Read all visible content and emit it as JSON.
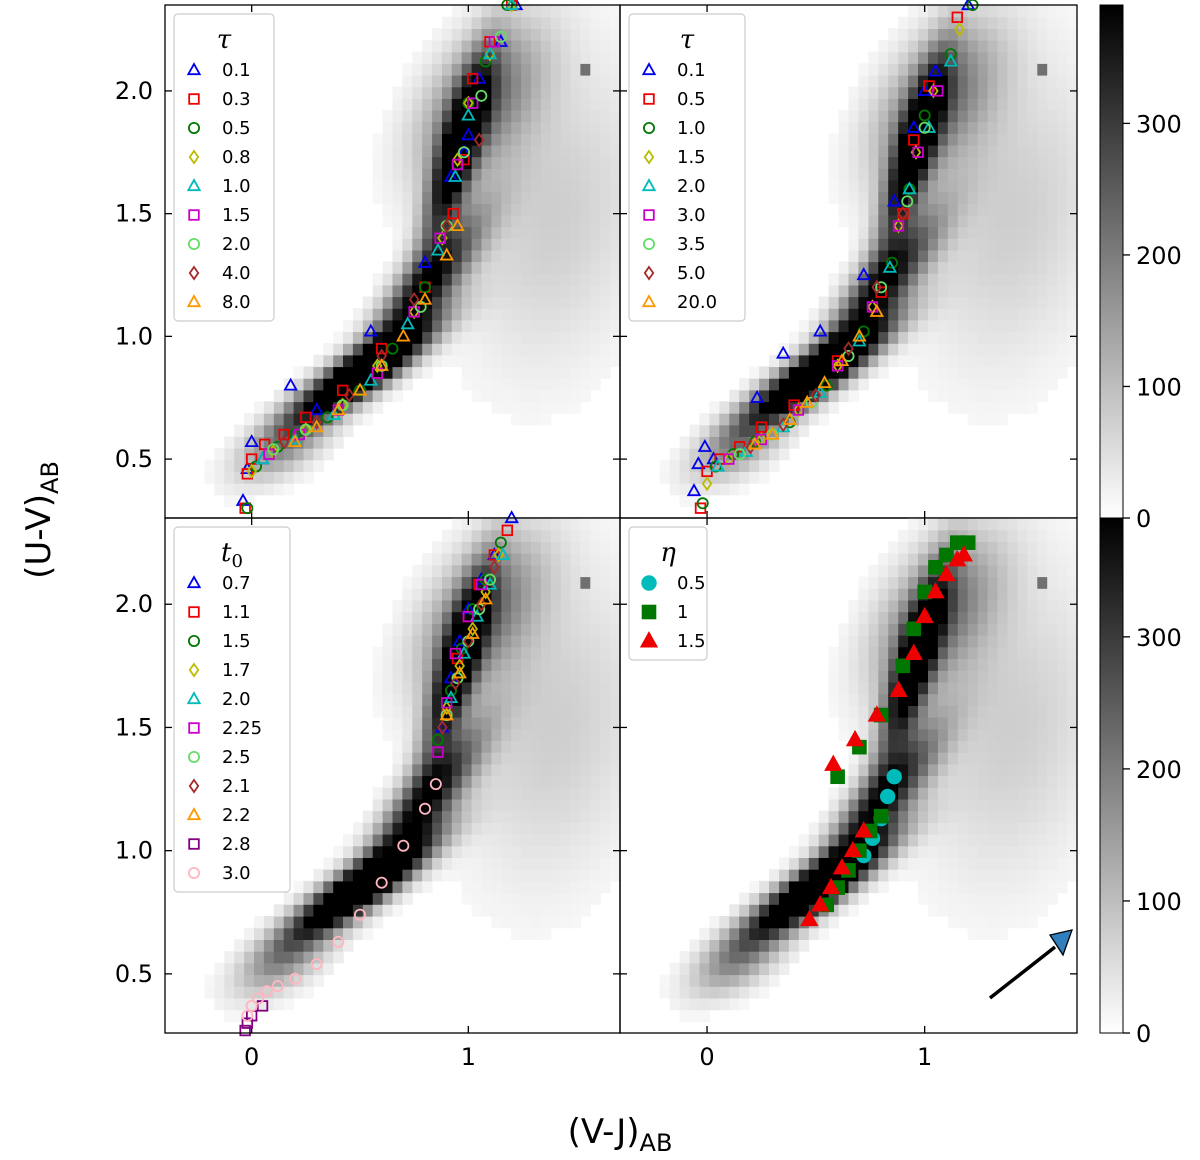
{
  "chart_data": {
    "type": "scatter",
    "figure": {
      "xlabel": "(V-J)",
      "xlabel_sub": "AB",
      "ylabel": "(U-V)",
      "ylabel_sub": "AB",
      "xlim": [
        -0.4,
        1.7
      ],
      "ylim": [
        0.26,
        2.35
      ],
      "xticks": [
        0,
        1
      ],
      "yticks": [
        0.5,
        1.0,
        1.5,
        2.0
      ],
      "ytick_labels": [
        "0.5",
        "1.0",
        "1.5",
        "2.0"
      ],
      "xtick_labels": [
        "0",
        "1"
      ]
    },
    "colorbars": [
      {
        "range": [
          0,
          390
        ],
        "ticks": [
          0,
          100,
          200,
          300
        ],
        "tick_labels": [
          "0",
          "100",
          "200",
          "300"
        ]
      },
      {
        "range": [
          0,
          390
        ],
        "ticks": [
          0,
          100,
          200,
          300
        ],
        "tick_labels": [
          "0",
          "100",
          "200",
          "300"
        ]
      }
    ],
    "density_background": {
      "description": "2D histogram of galaxy counts",
      "blobs": [
        {
          "x": 0.5,
          "y": 0.85,
          "sx": 0.22,
          "sy": 0.14,
          "rho": 0.88,
          "w": 1.0
        },
        {
          "x": 0.95,
          "y": 1.75,
          "sx": 0.1,
          "sy": 0.25,
          "rho": 0.8,
          "w": 0.7
        },
        {
          "x": 0.8,
          "y": 1.2,
          "sx": 0.18,
          "sy": 0.2,
          "rho": 0.85,
          "w": 0.6
        },
        {
          "x": 1.05,
          "y": 1.95,
          "sx": 0.2,
          "sy": 0.22,
          "rho": 0.5,
          "w": 0.35
        },
        {
          "x": 1.4,
          "y": 1.5,
          "sx": 0.3,
          "sy": 0.45,
          "rho": 0.2,
          "w": 0.12
        },
        {
          "x": 0.15,
          "y": 0.55,
          "sx": 0.15,
          "sy": 0.1,
          "rho": 0.6,
          "w": 0.25
        }
      ],
      "hot_pixel": {
        "x": 1.53,
        "y": 2.08
      }
    },
    "panels": [
      {
        "id": "top-left",
        "legend_title": "τ",
        "series": [
          {
            "name": "0.1",
            "marker": "triangle",
            "color": "#0000ee",
            "x": [
              -0.04,
              -0.02,
              0.0,
              0.05,
              0.18,
              0.3,
              0.55,
              0.8,
              0.92,
              0.98,
              1.0,
              1.05,
              1.15,
              1.22
            ],
            "y": [
              0.33,
              0.46,
              0.57,
              0.5,
              0.8,
              0.7,
              1.02,
              1.3,
              1.65,
              1.75,
              1.82,
              2.05,
              2.2,
              2.35
            ]
          },
          {
            "name": "0.3",
            "marker": "square",
            "color": "#ee0000",
            "x": [
              -0.03,
              -0.02,
              0.0,
              0.06,
              0.15,
              0.25,
              0.42,
              0.6,
              0.8,
              0.93,
              0.98,
              1.02,
              1.1,
              1.2
            ],
            "y": [
              0.3,
              0.44,
              0.5,
              0.56,
              0.6,
              0.67,
              0.78,
              0.95,
              1.2,
              1.5,
              1.72,
              2.05,
              2.2,
              2.35
            ]
          },
          {
            "name": "0.5",
            "marker": "circle",
            "color": "#007700",
            "x": [
              -0.02,
              0.02,
              0.12,
              0.2,
              0.35,
              0.5,
              0.65,
              0.8,
              0.9,
              0.95,
              1.0,
              1.08,
              1.18
            ],
            "y": [
              0.3,
              0.47,
              0.55,
              0.6,
              0.67,
              0.78,
              0.95,
              1.2,
              1.45,
              1.7,
              1.95,
              2.12,
              2.35
            ]
          },
          {
            "name": "0.8",
            "marker": "diamond",
            "color": "#bbbb00",
            "x": [
              0.0,
              0.1,
              0.25,
              0.42,
              0.58,
              0.75,
              0.88,
              0.95,
              1.0,
              1.1,
              1.2
            ],
            "y": [
              0.45,
              0.53,
              0.62,
              0.72,
              0.88,
              1.1,
              1.4,
              1.72,
              1.95,
              2.15,
              2.35
            ]
          },
          {
            "name": "1.0",
            "marker": "triangle",
            "color": "#00bbbb",
            "x": [
              0.05,
              0.2,
              0.38,
              0.55,
              0.72,
              0.86,
              0.94,
              1.0,
              1.1,
              1.2
            ],
            "y": [
              0.5,
              0.58,
              0.68,
              0.82,
              1.05,
              1.35,
              1.65,
              1.9,
              2.15,
              2.35
            ]
          },
          {
            "name": "1.5",
            "marker": "square",
            "color": "#cc00cc",
            "x": [
              0.08,
              0.22,
              0.4,
              0.58,
              0.75,
              0.87,
              0.95,
              1.02,
              1.12
            ],
            "y": [
              0.52,
              0.6,
              0.7,
              0.85,
              1.1,
              1.4,
              1.7,
              1.95,
              2.2
            ]
          },
          {
            "name": "2.0",
            "marker": "circle",
            "color": "#66dd66",
            "x": [
              0.1,
              0.25,
              0.42,
              0.6,
              0.78,
              0.9,
              0.98,
              1.06,
              1.15
            ],
            "y": [
              0.54,
              0.62,
              0.72,
              0.88,
              1.12,
              1.45,
              1.75,
              1.98,
              2.22
            ]
          },
          {
            "name": "4.0",
            "marker": "diamond",
            "color": "#a52a2a",
            "x": [
              0.15,
              0.3,
              0.45,
              0.6,
              0.75,
              0.9,
              1.05
            ],
            "y": [
              0.57,
              0.65,
              0.76,
              0.92,
              1.15,
              1.45,
              1.8
            ]
          },
          {
            "name": "8.0",
            "marker": "triangle",
            "color": "#ff9900",
            "x": [
              0.2,
              0.3,
              0.4,
              0.5,
              0.6,
              0.7,
              0.8,
              0.9,
              0.95
            ],
            "y": [
              0.57,
              0.63,
              0.7,
              0.78,
              0.88,
              1.0,
              1.15,
              1.33,
              1.45
            ]
          }
        ]
      },
      {
        "id": "top-right",
        "legend_title": "τ",
        "series": [
          {
            "name": "0.1",
            "marker": "triangle",
            "color": "#0000ee",
            "x": [
              -0.06,
              -0.04,
              -0.01,
              0.03,
              0.23,
              0.35,
              0.52,
              0.72,
              0.86,
              0.95,
              1.0,
              1.05,
              1.2
            ],
            "y": [
              0.37,
              0.48,
              0.55,
              0.5,
              0.75,
              0.93,
              1.02,
              1.25,
              1.55,
              1.85,
              2.0,
              2.08,
              2.35
            ]
          },
          {
            "name": "0.5",
            "marker": "square",
            "color": "#ee0000",
            "x": [
              -0.03,
              0.0,
              0.06,
              0.15,
              0.25,
              0.4,
              0.6,
              0.8,
              0.9,
              0.95,
              1.02,
              1.15
            ],
            "y": [
              0.3,
              0.45,
              0.5,
              0.55,
              0.63,
              0.72,
              0.9,
              1.18,
              1.5,
              1.8,
              2.02,
              2.3
            ]
          },
          {
            "name": "1.0",
            "marker": "circle",
            "color": "#007700",
            "x": [
              -0.02,
              0.04,
              0.12,
              0.22,
              0.38,
              0.55,
              0.72,
              0.85,
              0.93,
              1.0,
              1.12,
              1.22
            ],
            "y": [
              0.32,
              0.47,
              0.52,
              0.57,
              0.65,
              0.8,
              1.02,
              1.3,
              1.6,
              1.9,
              2.15,
              2.35
            ]
          },
          {
            "name": "1.5",
            "marker": "diamond",
            "color": "#bbbb00",
            "x": [
              0.0,
              0.1,
              0.25,
              0.42,
              0.6,
              0.76,
              0.88,
              0.96,
              1.04,
              1.16
            ],
            "y": [
              0.4,
              0.5,
              0.58,
              0.7,
              0.88,
              1.12,
              1.45,
              1.75,
              2.0,
              2.25
            ]
          },
          {
            "name": "2.0",
            "marker": "triangle",
            "color": "#00bbbb",
            "x": [
              0.05,
              0.18,
              0.35,
              0.52,
              0.7,
              0.84,
              0.93,
              1.02,
              1.12
            ],
            "y": [
              0.47,
              0.53,
              0.63,
              0.77,
              0.98,
              1.28,
              1.6,
              1.85,
              2.12
            ]
          },
          {
            "name": "3.0",
            "marker": "square",
            "color": "#cc00cc",
            "x": [
              0.1,
              0.25,
              0.42,
              0.6,
              0.76,
              0.88,
              0.97,
              1.06
            ],
            "y": [
              0.5,
              0.58,
              0.7,
              0.88,
              1.12,
              1.45,
              1.75,
              2.0
            ]
          },
          {
            "name": "3.5",
            "marker": "circle",
            "color": "#66dd66",
            "x": [
              0.15,
              0.3,
              0.48,
              0.65,
              0.8,
              0.92,
              1.0
            ],
            "y": [
              0.52,
              0.6,
              0.73,
              0.92,
              1.2,
              1.55,
              1.85
            ]
          },
          {
            "name": "5.0",
            "marker": "diamond",
            "color": "#a52a2a",
            "x": [
              0.2,
              0.35,
              0.5,
              0.65,
              0.78,
              0.9
            ],
            "y": [
              0.55,
              0.64,
              0.76,
              0.95,
              1.2,
              1.5
            ]
          },
          {
            "name": "20.0",
            "marker": "triangle",
            "color": "#ff9900",
            "x": [
              0.22,
              0.3,
              0.38,
              0.46,
              0.54,
              0.62,
              0.7,
              0.78
            ],
            "y": [
              0.56,
              0.6,
              0.66,
              0.73,
              0.81,
              0.9,
              1.0,
              1.1
            ]
          }
        ]
      },
      {
        "id": "bottom-left",
        "legend_title": "t0",
        "series": [
          {
            "name": "0.7",
            "marker": "triangle",
            "color": "#0000ee",
            "x": [
              0.88,
              0.92,
              0.96,
              1.0,
              1.06,
              1.12,
              1.2
            ],
            "y": [
              1.5,
              1.7,
              1.85,
              1.98,
              2.1,
              2.2,
              2.35
            ]
          },
          {
            "name": "1.1",
            "marker": "square",
            "color": "#ee0000",
            "x": [
              0.9,
              0.95,
              1.0,
              1.05,
              1.12,
              1.18
            ],
            "y": [
              1.55,
              1.78,
              1.95,
              2.08,
              2.2,
              2.3
            ]
          },
          {
            "name": "1.5",
            "marker": "circle",
            "color": "#007700",
            "x": [
              0.86,
              0.92,
              0.97,
              1.02,
              1.08,
              1.15
            ],
            "y": [
              1.45,
              1.65,
              1.82,
              1.98,
              2.1,
              2.25
            ]
          },
          {
            "name": "1.7",
            "marker": "diamond",
            "color": "#bbbb00",
            "x": [
              0.9,
              0.96,
              1.02,
              1.08,
              1.14
            ],
            "y": [
              1.58,
              1.75,
              1.9,
              2.05,
              2.2
            ]
          },
          {
            "name": "2.0",
            "marker": "triangle",
            "color": "#00bbbb",
            "x": [
              0.92,
              0.98,
              1.04,
              1.1,
              1.16
            ],
            "y": [
              1.62,
              1.8,
              1.95,
              2.08,
              2.2
            ]
          },
          {
            "name": "2.25",
            "marker": "square",
            "color": "#cc00cc",
            "x": [
              0.86,
              0.9,
              0.94,
              1.0,
              1.06
            ],
            "y": [
              1.4,
              1.6,
              1.8,
              1.95,
              2.08
            ]
          },
          {
            "name": "2.5",
            "marker": "circle",
            "color": "#66dd66",
            "x": [
              0.9,
              0.95,
              1.0,
              1.05,
              1.1
            ],
            "y": [
              1.55,
              1.7,
              1.85,
              1.98,
              2.1
            ]
          },
          {
            "name": "2.1",
            "marker": "diamond",
            "color": "#a52a2a",
            "x": [
              0.88,
              0.94,
              1.0,
              1.06,
              1.12
            ],
            "y": [
              1.5,
              1.68,
              1.85,
              2.0,
              2.15
            ]
          },
          {
            "name": "2.2",
            "marker": "triangle",
            "color": "#ff9900",
            "x": [
              0.9,
              0.96,
              1.02,
              1.08
            ],
            "y": [
              1.55,
              1.72,
              1.88,
              2.02
            ]
          },
          {
            "name": "2.8",
            "marker": "square",
            "color": "#800080",
            "x": [
              -0.03,
              -0.02,
              0.0,
              0.05
            ],
            "y": [
              0.27,
              0.3,
              0.33,
              0.37
            ]
          },
          {
            "name": "3.0",
            "marker": "circle",
            "color": "#ffb6c1",
            "x": [
              -0.02,
              0.0,
              0.03,
              0.07,
              0.12,
              0.2,
              0.3,
              0.4,
              0.5,
              0.6,
              0.7,
              0.8,
              0.85
            ],
            "y": [
              0.33,
              0.37,
              0.4,
              0.43,
              0.45,
              0.48,
              0.54,
              0.63,
              0.74,
              0.87,
              1.02,
              1.17,
              1.27
            ]
          }
        ]
      },
      {
        "id": "bottom-right",
        "legend_title": "η",
        "series": [
          {
            "name": "0.5",
            "marker": "circle",
            "filled": true,
            "color": "#00bbbb",
            "x": [
              0.72,
              0.76,
              0.8,
              0.83,
              0.86
            ],
            "y": [
              0.98,
              1.05,
              1.13,
              1.22,
              1.3
            ]
          },
          {
            "name": "1",
            "marker": "square",
            "filled": true,
            "color": "#007700",
            "x": [
              0.55,
              0.6,
              0.65,
              0.7,
              0.75,
              0.8,
              0.6,
              0.7,
              0.8,
              0.9,
              0.95,
              1.0,
              1.05,
              1.1,
              1.15,
              1.2
            ],
            "y": [
              0.78,
              0.85,
              0.92,
              1.0,
              1.08,
              1.14,
              1.3,
              1.42,
              1.55,
              1.75,
              1.9,
              2.05,
              2.15,
              2.2,
              2.25,
              2.25
            ]
          },
          {
            "name": "1.5",
            "marker": "triangle",
            "filled": true,
            "color": "#ee0000",
            "x": [
              0.47,
              0.52,
              0.57,
              0.62,
              0.67,
              0.72,
              0.58,
              0.68,
              0.78,
              0.88,
              0.95,
              1.0,
              1.05,
              1.1,
              1.15,
              1.18
            ],
            "y": [
              0.72,
              0.78,
              0.85,
              0.93,
              1.0,
              1.08,
              1.35,
              1.45,
              1.55,
              1.65,
              1.8,
              1.95,
              2.05,
              2.12,
              2.18,
              2.2
            ]
          }
        ]
      }
    ]
  }
}
